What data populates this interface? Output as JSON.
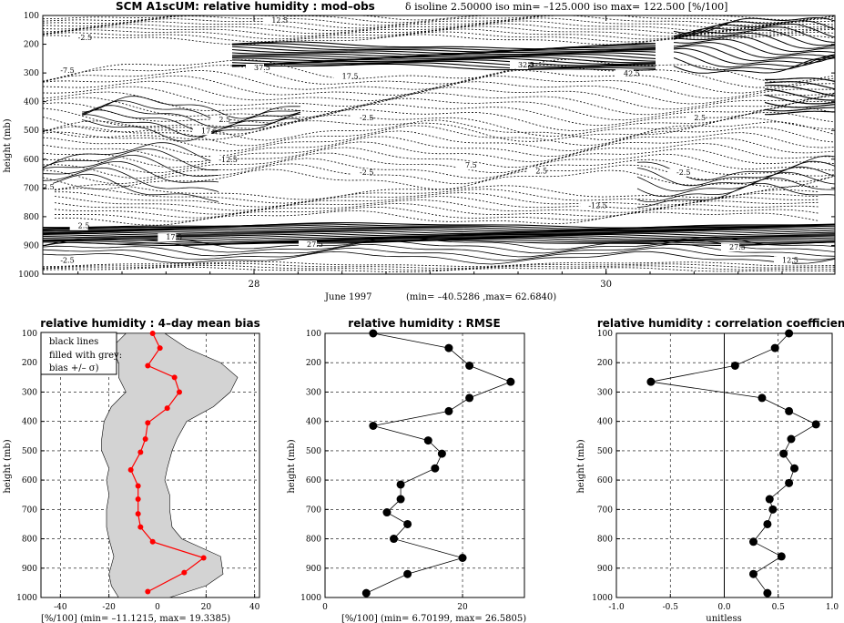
{
  "chart_data": [
    {
      "type": "contour",
      "title_left": "SCM A1scUM: relative humidity : mod–obs",
      "title_right": "δ isoline 2.50000   iso min= –125.000   iso max= 122.500 [%/100]",
      "ylabel": "height (mb)",
      "yticks": [
        100,
        200,
        300,
        400,
        500,
        600,
        700,
        800,
        900,
        1000
      ],
      "ylim": [
        1000,
        100
      ],
      "xticks": [
        {
          "day": 28,
          "label": "28"
        },
        {
          "day": 30,
          "label": "30"
        }
      ],
      "xlim": [
        26.8,
        31.3
      ],
      "xlabel": "June 1997",
      "range_text": "(min= –40.5286 ,max= 62.6840)",
      "isoline_labels": [
        {
          "day": 28.1,
          "p": 125,
          "text": "12.5"
        },
        {
          "day": 27.0,
          "p": 185,
          "text": "-2.5"
        },
        {
          "day": 26.9,
          "p": 300,
          "text": "-7.5"
        },
        {
          "day": 28.0,
          "p": 290,
          "text": "37.5"
        },
        {
          "day": 28.5,
          "p": 320,
          "text": "17.5"
        },
        {
          "day": 27.8,
          "p": 470,
          "text": "2.5"
        },
        {
          "day": 27.7,
          "p": 510,
          "text": "17.5"
        },
        {
          "day": 28.6,
          "p": 465,
          "text": "-2.5"
        },
        {
          "day": 29.5,
          "p": 280,
          "text": "32.5"
        },
        {
          "day": 30.5,
          "p": 465,
          "text": "2.5"
        },
        {
          "day": 30.1,
          "p": 310,
          "text": "42.5"
        },
        {
          "day": 26.8,
          "p": 705,
          "text": "2.5"
        },
        {
          "day": 27.8,
          "p": 610,
          "text": "-12.5"
        },
        {
          "day": 28.6,
          "p": 655,
          "text": "-2.5"
        },
        {
          "day": 29.2,
          "p": 630,
          "text": "7.5"
        },
        {
          "day": 29.6,
          "p": 650,
          "text": "2.5"
        },
        {
          "day": 30.4,
          "p": 655,
          "text": "-2.5"
        },
        {
          "day": 29.9,
          "p": 770,
          "text": "-12.5"
        },
        {
          "day": 27.0,
          "p": 840,
          "text": "2.5"
        },
        {
          "day": 27.5,
          "p": 880,
          "text": "17.5"
        },
        {
          "day": 28.3,
          "p": 905,
          "text": "27.5"
        },
        {
          "day": 30.7,
          "p": 915,
          "text": "27.5"
        },
        {
          "day": 26.9,
          "p": 960,
          "text": "-2.5"
        },
        {
          "day": 31.0,
          "p": 960,
          "text": "12.5"
        }
      ]
    },
    {
      "type": "line",
      "title": "relative humidity : 4–day mean bias",
      "legend": [
        "black lines",
        "filled with grey:",
        "bias +/– σ)"
      ],
      "ylabel": "height (mb)",
      "xlabel": "[%/100]   (min=    –11.1215, max=       19.3385)",
      "xlim": [
        -48,
        42
      ],
      "ylim": [
        1000,
        100
      ],
      "xticks": [
        -40,
        -20,
        0,
        20,
        40
      ],
      "yticks": [
        100,
        200,
        300,
        400,
        500,
        600,
        700,
        800,
        900,
        1000
      ],
      "series": [
        {
          "values": [
            {
              "x": -2,
              "y": 100
            },
            {
              "x": 1,
              "y": 150
            },
            {
              "x": -4,
              "y": 210
            },
            {
              "x": 7,
              "y": 250
            },
            {
              "x": 9,
              "y": 300
            },
            {
              "x": 4,
              "y": 355
            },
            {
              "x": -4,
              "y": 405
            },
            {
              "x": -5,
              "y": 460
            },
            {
              "x": -7,
              "y": 505
            },
            {
              "x": -11,
              "y": 565
            },
            {
              "x": -8,
              "y": 620
            },
            {
              "x": -8,
              "y": 665
            },
            {
              "x": -8,
              "y": 715
            },
            {
              "x": -7,
              "y": 760
            },
            {
              "x": -2,
              "y": 810
            },
            {
              "x": 19,
              "y": 865
            },
            {
              "x": 11,
              "y": 915
            },
            {
              "x": -4,
              "y": 980
            }
          ],
          "color": "#ff0000"
        }
      ],
      "sigma_band": {
        "lower": [
          -13,
          -19,
          -16,
          -16,
          -13,
          -19,
          -22,
          -23,
          -23,
          -20,
          -21,
          -20,
          -21,
          -21,
          -20,
          -18,
          -20,
          -19,
          -16
        ],
        "upper": [
          3,
          12,
          26,
          33,
          30,
          23,
          12,
          8,
          6,
          4,
          3,
          5,
          5,
          6,
          10,
          26,
          27,
          20,
          5
        ],
        "levels": [
          100,
          150,
          200,
          250,
          300,
          350,
          400,
          460,
          500,
          560,
          600,
          650,
          700,
          760,
          800,
          860,
          920,
          960,
          1000
        ]
      }
    },
    {
      "type": "line",
      "title": "relative humidity : RMSE",
      "ylabel": "height (mb)",
      "xlabel": "[%/100]   (min=      6.70199, max=       26.5805)",
      "xlim": [
        0,
        29
      ],
      "ylim": [
        1000,
        100
      ],
      "xticks": [
        0,
        20
      ],
      "yticks": [
        100,
        200,
        300,
        400,
        500,
        600,
        700,
        800,
        900,
        1000
      ],
      "series": [
        {
          "values": [
            {
              "x": 7,
              "y": 100
            },
            {
              "x": 18,
              "y": 150
            },
            {
              "x": 21,
              "y": 210
            },
            {
              "x": 27,
              "y": 265
            },
            {
              "x": 21,
              "y": 320
            },
            {
              "x": 18,
              "y": 365
            },
            {
              "x": 7,
              "y": 415
            },
            {
              "x": 15,
              "y": 465
            },
            {
              "x": 17,
              "y": 510
            },
            {
              "x": 16,
              "y": 560
            },
            {
              "x": 11,
              "y": 615
            },
            {
              "x": 11,
              "y": 665
            },
            {
              "x": 9,
              "y": 710
            },
            {
              "x": 12,
              "y": 750
            },
            {
              "x": 10,
              "y": 800
            },
            {
              "x": 20,
              "y": 865
            },
            {
              "x": 12,
              "y": 920
            },
            {
              "x": 6,
              "y": 985
            }
          ],
          "color": "#000000"
        }
      ]
    },
    {
      "type": "line",
      "title": "relative humidity : correlation coefficient",
      "ylabel": "height (mb)",
      "xlabel": "unitless",
      "xlim": [
        -1.0,
        1.0
      ],
      "ylim": [
        1000,
        100
      ],
      "xticks": [
        -1.0,
        -0.5,
        0.0,
        0.5,
        1.0
      ],
      "yticks": [
        100,
        200,
        300,
        400,
        500,
        600,
        700,
        800,
        900,
        1000
      ],
      "series": [
        {
          "values": [
            {
              "x": 0.6,
              "y": 100
            },
            {
              "x": 0.47,
              "y": 150
            },
            {
              "x": 0.1,
              "y": 210
            },
            {
              "x": -0.68,
              "y": 265
            },
            {
              "x": 0.35,
              "y": 320
            },
            {
              "x": 0.6,
              "y": 365
            },
            {
              "x": 0.85,
              "y": 410
            },
            {
              "x": 0.62,
              "y": 460
            },
            {
              "x": 0.55,
              "y": 510
            },
            {
              "x": 0.65,
              "y": 560
            },
            {
              "x": 0.6,
              "y": 610
            },
            {
              "x": 0.42,
              "y": 665
            },
            {
              "x": 0.45,
              "y": 700
            },
            {
              "x": 0.4,
              "y": 750
            },
            {
              "x": 0.27,
              "y": 810
            },
            {
              "x": 0.53,
              "y": 860
            },
            {
              "x": 0.27,
              "y": 920
            },
            {
              "x": 0.4,
              "y": 985
            }
          ],
          "color": "#000000"
        }
      ]
    }
  ]
}
